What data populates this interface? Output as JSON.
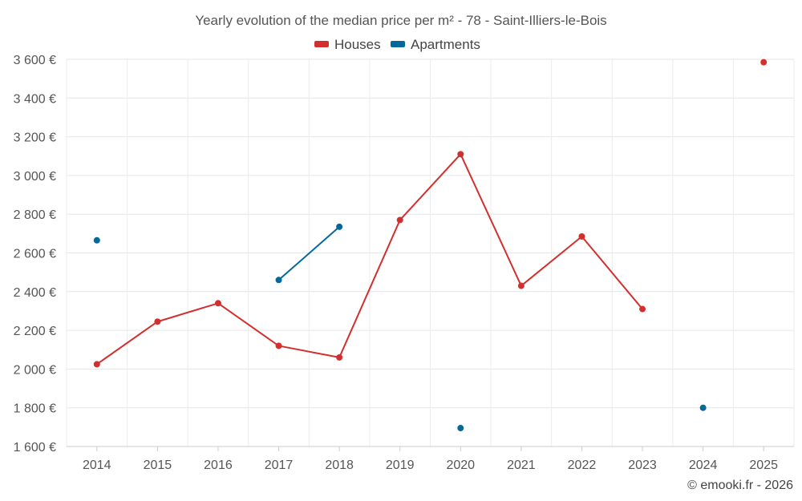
{
  "chart_data": {
    "type": "line",
    "title": "Yearly evolution of the median price per m² - 78 - Saint-Illiers-le-Bois",
    "categories": [
      "2014",
      "2015",
      "2016",
      "2017",
      "2018",
      "2019",
      "2020",
      "2021",
      "2022",
      "2023",
      "2024",
      "2025"
    ],
    "y_ticks": [
      "1 600 €",
      "1 800 €",
      "2 000 €",
      "2 200 €",
      "2 400 €",
      "2 600 €",
      "2 800 €",
      "3 000 €",
      "3 200 €",
      "3 400 €",
      "3 600 €"
    ],
    "ylim": [
      1600,
      3600
    ],
    "legend_position": "top-center",
    "grid": true,
    "series": [
      {
        "name": "Houses",
        "color": "#d32f2f",
        "values": [
          2025,
          2245,
          2340,
          2120,
          2060,
          2770,
          3110,
          2430,
          2685,
          2310,
          null,
          3585
        ]
      },
      {
        "name": "Apartments",
        "color": "#03699c",
        "values": [
          2665,
          null,
          null,
          2460,
          2735,
          null,
          1695,
          null,
          null,
          null,
          1800,
          null
        ]
      }
    ],
    "credit": "© emooki.fr - 2026"
  }
}
